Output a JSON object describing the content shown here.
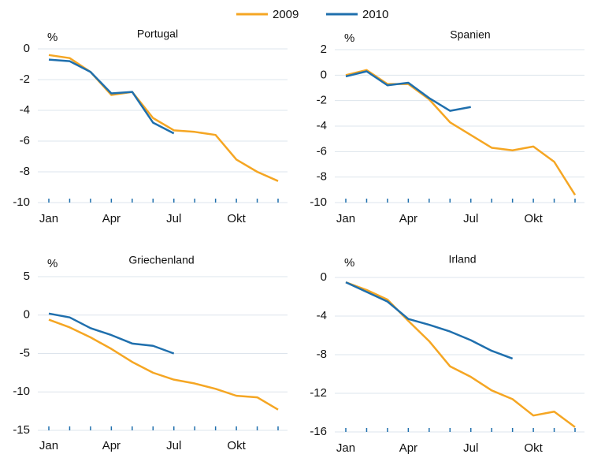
{
  "chart_data": [
    {
      "type": "line",
      "title": "Portugal",
      "ylabel": "%",
      "categories": [
        "Jan",
        null,
        null,
        "Apr",
        null,
        null,
        "Jul",
        null,
        null,
        "Okt",
        null,
        null
      ],
      "series": [
        {
          "name": "2009",
          "color": "#f5a623",
          "values": [
            -0.4,
            -0.6,
            -1.5,
            -3.0,
            -2.8,
            -4.5,
            -5.3,
            -5.4,
            -5.6,
            -7.2,
            -8.0,
            -8.6
          ]
        },
        {
          "name": "2010",
          "color": "#1f6fad",
          "values": [
            -0.7,
            -0.8,
            -1.5,
            -2.9,
            -2.8,
            -4.8,
            -5.5,
            null,
            null,
            null,
            null,
            null
          ]
        }
      ],
      "ylim": [
        -10,
        0
      ],
      "yticks": [
        -10,
        -8,
        -6,
        -4,
        -2,
        0
      ],
      "grid": true
    },
    {
      "type": "line",
      "title": "Spanien",
      "ylabel": "%",
      "categories": [
        "Jan",
        null,
        null,
        "Apr",
        null,
        null,
        "Jul",
        null,
        null,
        "Okt",
        null,
        null
      ],
      "series": [
        {
          "name": "2009",
          "color": "#f5a623",
          "values": [
            0.0,
            0.4,
            -0.7,
            -0.7,
            -1.9,
            -3.7,
            -4.7,
            -5.7,
            -5.9,
            -5.6,
            -6.8,
            -9.4
          ]
        },
        {
          "name": "2010",
          "color": "#1f6fad",
          "values": [
            -0.1,
            0.3,
            -0.8,
            -0.6,
            -1.8,
            -2.8,
            -2.5,
            null,
            null,
            null,
            null,
            null
          ]
        }
      ],
      "ylim": [
        -10,
        2
      ],
      "yticks": [
        -10,
        -8,
        -6,
        -4,
        -2,
        0,
        2
      ],
      "grid": true
    },
    {
      "type": "line",
      "title": "Griechenland",
      "ylabel": "%",
      "categories": [
        "Jan",
        null,
        null,
        "Apr",
        null,
        null,
        "Jul",
        null,
        null,
        "Okt",
        null,
        null
      ],
      "series": [
        {
          "name": "2009",
          "color": "#f5a623",
          "values": [
            -0.6,
            -1.6,
            -2.9,
            -4.4,
            -6.1,
            -7.5,
            -8.4,
            -8.9,
            -9.6,
            -10.5,
            -10.7,
            -12.3
          ]
        },
        {
          "name": "2010",
          "color": "#1f6fad",
          "values": [
            0.2,
            -0.3,
            -1.7,
            -2.6,
            -3.7,
            -4.0,
            -5.0,
            null,
            null,
            null,
            null,
            null
          ]
        }
      ],
      "ylim": [
        -15,
        5
      ],
      "yticks": [
        -15,
        -10,
        -5,
        0,
        5
      ],
      "grid": true
    },
    {
      "type": "line",
      "title": "Irland",
      "ylabel": "%",
      "categories": [
        "Jan",
        null,
        null,
        "Apr",
        null,
        null,
        "Jul",
        null,
        null,
        "Okt",
        null,
        null
      ],
      "series": [
        {
          "name": "2009",
          "color": "#f5a623",
          "values": [
            -0.5,
            -1.3,
            -2.3,
            -4.5,
            -6.6,
            -9.2,
            -10.3,
            -11.7,
            -12.6,
            -14.3,
            -13.9,
            -15.5
          ]
        },
        {
          "name": "2010",
          "color": "#1f6fad",
          "values": [
            -0.5,
            -1.5,
            -2.5,
            -4.3,
            -4.9,
            -5.6,
            -6.5,
            -7.6,
            -8.4,
            null,
            null,
            null
          ]
        }
      ],
      "ylim": [
        -16,
        0
      ],
      "yticks": [
        -16,
        -12,
        -8,
        -4,
        0
      ],
      "grid": true
    }
  ]
}
